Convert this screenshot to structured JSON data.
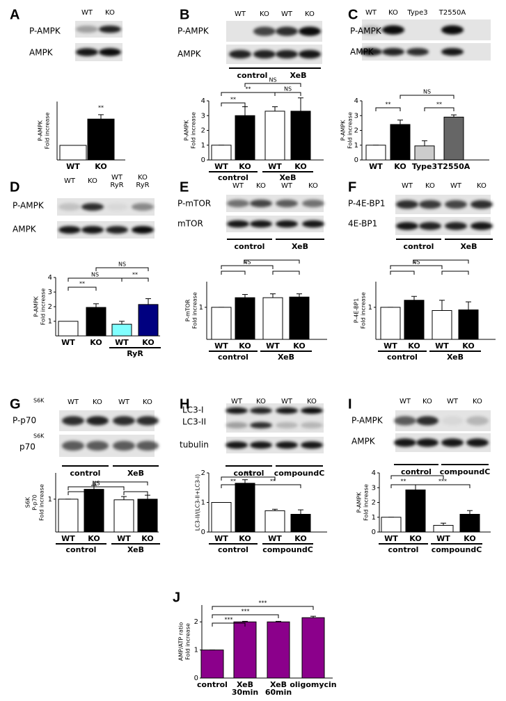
{
  "chart_data": [
    {
      "type": "bar",
      "panel": "A",
      "lanes": [
        "WT",
        "KO"
      ],
      "blot_rows": [
        "P-AMPK",
        "AMPK"
      ],
      "ylabel": [
        "P-AMPK",
        "Fold increase"
      ],
      "categories": [
        "WT",
        "KO"
      ],
      "values": [
        1,
        2.8
      ],
      "errors": [
        0,
        0.3
      ],
      "colors": [
        "#ffffff",
        "#000000"
      ],
      "ylim": [
        0,
        4
      ],
      "yticks": [],
      "annotations": [
        "**"
      ]
    },
    {
      "type": "bar",
      "panel": "B",
      "lanes": [
        "WT",
        "KO",
        "WT",
        "KO"
      ],
      "blot_rows": [
        "P-AMPK",
        "AMPK"
      ],
      "blot_groups": [
        "control",
        "XeB"
      ],
      "ylabel": [
        "P-AMPK",
        "Fold increase"
      ],
      "categories": [
        "WT",
        "KO",
        "WT",
        "KO"
      ],
      "groups": [
        "control",
        "XeB"
      ],
      "values": [
        1,
        3,
        3.3,
        3.3
      ],
      "errors": [
        0,
        0.6,
        0.3,
        0.9
      ],
      "colors": [
        "#ffffff",
        "#000000",
        "#ffffff",
        "#000000"
      ],
      "ylim": [
        0,
        4
      ],
      "yticks": [
        0,
        1,
        2,
        3,
        4
      ],
      "annotations": [
        "**",
        "**",
        "NS",
        "NS"
      ]
    },
    {
      "type": "bar",
      "panel": "C",
      "lanes": [
        "WT",
        "KO",
        "Type3",
        "T2550A"
      ],
      "blot_rows": [
        "P-AMPK",
        "AMPK"
      ],
      "ylabel": [
        "P-AMPK",
        "Fold increase"
      ],
      "categories": [
        "WT",
        "KO",
        "Type3",
        "T2550A"
      ],
      "values": [
        1,
        2.4,
        0.95,
        2.9
      ],
      "errors": [
        0,
        0.3,
        0.35,
        0.15
      ],
      "colors": [
        "#ffffff",
        "#000000",
        "#cccccc",
        "#666666"
      ],
      "ylim": [
        0,
        4
      ],
      "yticks": [
        0,
        1,
        2,
        3,
        4
      ],
      "annotations": [
        "**",
        "NS",
        "**"
      ]
    },
    {
      "type": "bar",
      "panel": "D",
      "lanes": [
        "WT",
        "KO",
        [
          "WT",
          "RyR"
        ],
        [
          "KO",
          "RyR"
        ]
      ],
      "blot_rows": [
        "P-AMPK",
        "AMPK"
      ],
      "ylabel": [
        "P-AMPK",
        "Fold increase"
      ],
      "categories": [
        "WT",
        "KO",
        "WT",
        "KO"
      ],
      "groups": [
        null,
        "RyR"
      ],
      "values": [
        1,
        1.95,
        0.8,
        2.15
      ],
      "errors": [
        0,
        0.25,
        0.2,
        0.4
      ],
      "colors": [
        "#ffffff",
        "#000000",
        "#80ffff",
        "#000080"
      ],
      "ylim": [
        0,
        4
      ],
      "yticks": [
        1,
        2,
        3,
        4
      ],
      "annotations": [
        "**",
        "NS",
        "**",
        "NS"
      ]
    },
    {
      "type": "bar",
      "panel": "E",
      "lanes": [
        "WT",
        "KO",
        "WT",
        "KO"
      ],
      "blot_rows": [
        "P-mTOR",
        "mTOR"
      ],
      "blot_groups": [
        "control",
        "XeB"
      ],
      "ylabel": [
        "P-mTOR",
        "Fold increase"
      ],
      "categories": [
        "WT",
        "KO",
        "WT",
        "KO"
      ],
      "groups": [
        "control",
        "XeB"
      ],
      "values": [
        1,
        1.3,
        1.3,
        1.32
      ],
      "errors": [
        0,
        0.1,
        0.12,
        0.1
      ],
      "colors": [
        "#ffffff",
        "#000000",
        "#ffffff",
        "#000000"
      ],
      "ylim": [
        0,
        1.8
      ],
      "yticks": [
        1
      ],
      "annotations": [
        "NS"
      ]
    },
    {
      "type": "bar",
      "panel": "F",
      "lanes": [
        "WT",
        "KO",
        "WT",
        "KO"
      ],
      "blot_rows": [
        "P-4E-BP1",
        "4E-BP1"
      ],
      "blot_groups": [
        "control",
        "XeB"
      ],
      "ylabel": [
        "P-4E-BP1",
        "Fold increase"
      ],
      "categories": [
        "WT",
        "KO",
        "WT",
        "KO"
      ],
      "groups": [
        "control",
        "XeB"
      ],
      "values": [
        1,
        1.22,
        0.9,
        0.92
      ],
      "errors": [
        0,
        0.12,
        0.32,
        0.25
      ],
      "colors": [
        "#ffffff",
        "#000000",
        "#ffffff",
        "#000000"
      ],
      "ylim": [
        0,
        1.8
      ],
      "yticks": [
        1
      ],
      "annotations": [
        "NS"
      ]
    },
    {
      "type": "bar",
      "panel": "G",
      "lanes": [
        "WT",
        "KO",
        "WT",
        "KO"
      ],
      "blot_rows": [
        "S6K",
        "P-p70",
        "S6K",
        "p70"
      ],
      "blot_groups": [
        "control",
        "XeB"
      ],
      "ylabel": [
        "S6K",
        "P-p70",
        "Fold increase"
      ],
      "categories": [
        "WT",
        "KO",
        "WT",
        "KO"
      ],
      "groups": [
        "control",
        "XeB"
      ],
      "values": [
        1,
        1.3,
        0.98,
        1.0
      ],
      "errors": [
        0,
        0.12,
        0.1,
        0.12
      ],
      "colors": [
        "#ffffff",
        "#000000",
        "#ffffff",
        "#000000"
      ],
      "ylim": [
        0,
        1.8
      ],
      "yticks": [
        1
      ],
      "annotations": [
        "NS"
      ]
    },
    {
      "type": "bar",
      "panel": "H",
      "lanes": [
        "WT",
        "KO",
        "WT",
        "KO"
      ],
      "blot_rows": [
        "LC3-I",
        "LC3-II",
        "tubulin"
      ],
      "blot_groups": [
        "control",
        "compoundC"
      ],
      "ylabel": [
        "LC3-II/(LC3-II+LC3-I)"
      ],
      "categories": [
        "WT",
        "KO",
        "WT",
        "KO"
      ],
      "groups": [
        "control",
        "compoundC"
      ],
      "values": [
        1,
        1.65,
        0.72,
        0.6
      ],
      "errors": [
        0,
        0.12,
        0.05,
        0.15
      ],
      "colors": [
        "#ffffff",
        "#000000",
        "#ffffff",
        "#000000"
      ],
      "ylim": [
        0,
        2
      ],
      "yticks": [
        0,
        1,
        2
      ],
      "annotations": [
        "**",
        "NS",
        "**"
      ]
    },
    {
      "type": "bar",
      "panel": "I",
      "lanes": [
        "WT",
        "KO",
        "WT",
        "KO"
      ],
      "blot_rows": [
        "P-AMPK",
        "AMPK"
      ],
      "blot_groups": [
        "control",
        "compoundC"
      ],
      "ylabel": [
        "P-AMPK",
        "Fold increase"
      ],
      "categories": [
        "WT",
        "KO",
        "WT",
        "KO"
      ],
      "groups": [
        "control",
        "compoundC"
      ],
      "values": [
        1,
        2.85,
        0.45,
        1.2
      ],
      "errors": [
        0,
        0.35,
        0.15,
        0.25
      ],
      "colors": [
        "#ffffff",
        "#000000",
        "#ffffff",
        "#000000"
      ],
      "ylim": [
        0,
        4
      ],
      "yticks": [
        0,
        1,
        2,
        3,
        4
      ],
      "annotations": [
        "**",
        "*",
        "***"
      ]
    },
    {
      "type": "bar",
      "panel": "J",
      "ylabel": [
        "AMP/ATP ratio",
        "Fold increase"
      ],
      "categories": [
        "control",
        [
          "XeB",
          "30min"
        ],
        [
          "XeB",
          "60min"
        ],
        "oligomycin"
      ],
      "values": [
        1,
        2,
        2,
        2.15
      ],
      "errors": [
        0,
        0.02,
        0.02,
        0.05
      ],
      "colors": [
        "#8b008b",
        "#8b008b",
        "#8b008b",
        "#8b008b"
      ],
      "ylim": [
        0,
        2.6
      ],
      "yticks": [
        0,
        1,
        2
      ],
      "annotations": [
        "***",
        "***",
        "***"
      ]
    }
  ]
}
